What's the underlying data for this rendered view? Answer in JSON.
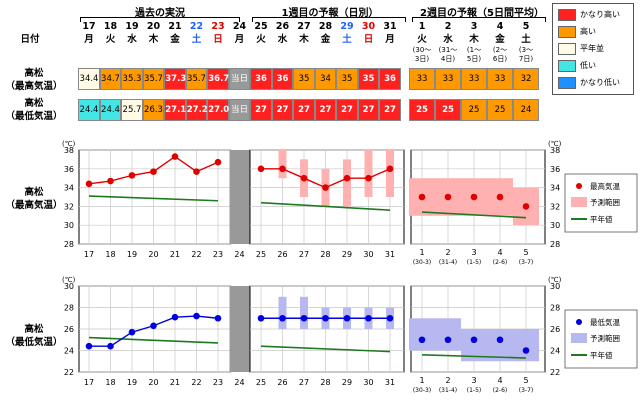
{
  "top": {
    "label_date": "日付",
    "section_past": "過去の実況",
    "section_week1": "1週目の予報（日別）",
    "section_week2": "2週目の予報（5日間平均）",
    "days": [
      {
        "num": "17",
        "dow": "月",
        "cls": ""
      },
      {
        "num": "18",
        "dow": "火",
        "cls": ""
      },
      {
        "num": "19",
        "dow": "水",
        "cls": ""
      },
      {
        "num": "20",
        "dow": "木",
        "cls": ""
      },
      {
        "num": "21",
        "dow": "金",
        "cls": ""
      },
      {
        "num": "22",
        "dow": "土",
        "cls": "sat"
      },
      {
        "num": "23",
        "dow": "日",
        "cls": "sun"
      },
      {
        "num": "24",
        "dow": "月",
        "cls": ""
      },
      {
        "num": "25",
        "dow": "火",
        "cls": ""
      },
      {
        "num": "26",
        "dow": "水",
        "cls": ""
      },
      {
        "num": "27",
        "dow": "木",
        "cls": ""
      },
      {
        "num": "28",
        "dow": "金",
        "cls": ""
      },
      {
        "num": "29",
        "dow": "土",
        "cls": "sat"
      },
      {
        "num": "30",
        "dow": "日",
        "cls": "sun"
      },
      {
        "num": "31",
        "dow": "月",
        "cls": ""
      }
    ],
    "periods": [
      {
        "num": "1",
        "dow": "火",
        "range": "(30〜",
        "range2": "3日)"
      },
      {
        "num": "2",
        "dow": "水",
        "range": "(31〜",
        "range2": "4日)"
      },
      {
        "num": "3",
        "dow": "木",
        "range": "(1〜",
        "range2": "5日)"
      },
      {
        "num": "4",
        "dow": "金",
        "range": "(2〜",
        "range2": "6日)"
      },
      {
        "num": "5",
        "dow": "土",
        "range": "(3〜",
        "range2": "7日)"
      }
    ],
    "row_max_label": [
      "高松",
      "（最高気温）"
    ],
    "row_min_label": [
      "高松",
      "（最低気温）"
    ],
    "row_max_daily": [
      {
        "v": "34.4",
        "c": "#fffbe6"
      },
      {
        "v": "34.7",
        "c": "#ff9900"
      },
      {
        "v": "35.3",
        "c": "#ff9900"
      },
      {
        "v": "35.7",
        "c": "#ff9900"
      },
      {
        "v": "37.3",
        "c": "#ff2020",
        "b": true
      },
      {
        "v": "35.7",
        "c": "#ff9900"
      },
      {
        "v": "36.7",
        "c": "#ff2020",
        "b": true
      },
      {
        "v": "当日",
        "c": "#999999",
        "today": true
      },
      {
        "v": "36",
        "c": "#ff2020",
        "b": true
      },
      {
        "v": "36",
        "c": "#ff2020",
        "b": true
      },
      {
        "v": "35",
        "c": "#ff9900"
      },
      {
        "v": "34",
        "c": "#ff9900"
      },
      {
        "v": "35",
        "c": "#ff9900"
      },
      {
        "v": "35",
        "c": "#ff2020",
        "b": true
      },
      {
        "v": "36",
        "c": "#ff2020",
        "b": true
      }
    ],
    "row_max_weekly": [
      {
        "v": "33",
        "c": "#ff9900"
      },
      {
        "v": "33",
        "c": "#ff9900"
      },
      {
        "v": "33",
        "c": "#ff9900"
      },
      {
        "v": "33",
        "c": "#ff9900"
      },
      {
        "v": "32",
        "c": "#ff9900"
      }
    ],
    "row_min_daily": [
      {
        "v": "24.4",
        "c": "#44e5e5"
      },
      {
        "v": "24.4",
        "c": "#44e5e5"
      },
      {
        "v": "25.7",
        "c": "#fffbe6"
      },
      {
        "v": "26.3",
        "c": "#ff9900"
      },
      {
        "v": "27.1",
        "c": "#ff2020",
        "b": true
      },
      {
        "v": "27.2",
        "c": "#ff2020",
        "b": true
      },
      {
        "v": "27.0",
        "c": "#ff2020",
        "b": true
      },
      {
        "v": "当日",
        "c": "#999999",
        "today": true
      },
      {
        "v": "27",
        "c": "#ff2020",
        "b": true
      },
      {
        "v": "27",
        "c": "#ff2020",
        "b": true
      },
      {
        "v": "27",
        "c": "#ff2020",
        "b": true
      },
      {
        "v": "27",
        "c": "#ff2020",
        "b": true
      },
      {
        "v": "27",
        "c": "#ff2020",
        "b": true
      },
      {
        "v": "27",
        "c": "#ff2020",
        "b": true
      },
      {
        "v": "27",
        "c": "#ff2020",
        "b": true
      }
    ],
    "row_min_weekly": [
      {
        "v": "25",
        "c": "#ff2020",
        "b": true
      },
      {
        "v": "25",
        "c": "#ff2020",
        "b": true
      },
      {
        "v": "25",
        "c": "#ff9900"
      },
      {
        "v": "25",
        "c": "#ff9900"
      },
      {
        "v": "24",
        "c": "#ff9900"
      }
    ],
    "legend": [
      {
        "label": "かなり高い",
        "color": "#ff2020"
      },
      {
        "label": "高い",
        "color": "#ff9900"
      },
      {
        "label": "平年並",
        "color": "#fffbe6"
      },
      {
        "label": "低い",
        "color": "#44e5e5"
      },
      {
        "label": "かなり低い",
        "color": "#1e90ff"
      }
    ]
  },
  "chart_data": [
    {
      "type": "line",
      "title": "",
      "side_label": [
        "高松",
        "（最高気温）"
      ],
      "unit_label": "(℃)",
      "ylim": [
        28,
        38
      ],
      "yticks": [
        28,
        30,
        32,
        34,
        36,
        38
      ],
      "x_daily": [
        "17",
        "18",
        "19",
        "20",
        "21",
        "22",
        "23",
        "24",
        "25",
        "26",
        "27",
        "28",
        "29",
        "30",
        "31"
      ],
      "x_weekly": [
        "1",
        "2",
        "3",
        "4",
        "5"
      ],
      "x_weekly_sub": [
        "(30-3)",
        "(31-4)",
        "(1-5)",
        "(2-6)",
        "(3-7)"
      ],
      "today_index": 7,
      "observed": {
        "x": [
          0,
          1,
          2,
          3,
          4,
          5,
          6
        ],
        "y": [
          34.4,
          34.7,
          35.3,
          35.7,
          37.3,
          35.7,
          36.7
        ]
      },
      "forecast": {
        "x": [
          8,
          9,
          10,
          11,
          12,
          13,
          14
        ],
        "y": [
          36,
          36,
          35,
          34,
          35,
          35,
          36
        ],
        "low": [
          36,
          35,
          33,
          32,
          32,
          33,
          33
        ],
        "high": [
          36,
          38,
          37,
          36,
          37,
          38,
          38
        ]
      },
      "normal_past": {
        "x": [
          0,
          6
        ],
        "y": [
          33.1,
          32.6
        ]
      },
      "normal_fc": {
        "x": [
          8,
          14
        ],
        "y": [
          32.4,
          31.6
        ]
      },
      "weekly": {
        "y": [
          33,
          33,
          33,
          33,
          32
        ],
        "low": [
          31,
          31,
          31,
          31,
          30
        ],
        "high": [
          35,
          35,
          35,
          35,
          34
        ],
        "normal": [
          31.4,
          30.8
        ]
      },
      "line_color": "#e00000",
      "range_color": "#ffb0b0",
      "normal_color": "#1f7a1f",
      "legend": [
        "最高気温",
        "予測範囲",
        "平年値"
      ]
    },
    {
      "type": "line",
      "title": "",
      "side_label": [
        "高松",
        "（最低気温）"
      ],
      "unit_label": "(℃)",
      "ylim": [
        22,
        30
      ],
      "yticks": [
        22,
        24,
        26,
        28,
        30
      ],
      "x_daily": [
        "17",
        "18",
        "19",
        "20",
        "21",
        "22",
        "23",
        "24",
        "25",
        "26",
        "27",
        "28",
        "29",
        "30",
        "31"
      ],
      "x_weekly": [
        "1",
        "2",
        "3",
        "4",
        "5"
      ],
      "x_weekly_sub": [
        "(30-3)",
        "(31-4)",
        "(1-5)",
        "(2-6)",
        "(3-7)"
      ],
      "today_index": 7,
      "observed": {
        "x": [
          0,
          1,
          2,
          3,
          4,
          5,
          6
        ],
        "y": [
          24.4,
          24.4,
          25.7,
          26.3,
          27.1,
          27.2,
          27.0
        ]
      },
      "forecast": {
        "x": [
          8,
          9,
          10,
          11,
          12,
          13,
          14
        ],
        "y": [
          27,
          27,
          27,
          27,
          27,
          27,
          27
        ],
        "low": [
          27,
          26,
          26,
          26,
          26,
          26,
          26
        ],
        "high": [
          27,
          29,
          29,
          28,
          28,
          28,
          28
        ]
      },
      "normal_past": {
        "x": [
          0,
          6
        ],
        "y": [
          25.2,
          24.7
        ]
      },
      "normal_fc": {
        "x": [
          8,
          14
        ],
        "y": [
          24.4,
          23.9
        ]
      },
      "weekly": {
        "y": [
          25,
          25,
          25,
          25,
          24
        ],
        "low": [
          24,
          24,
          23,
          23,
          23
        ],
        "high": [
          27,
          27,
          26,
          26,
          26
        ],
        "normal": [
          23.6,
          23.3
        ]
      },
      "line_color": "#0000e0",
      "range_color": "#b8b8f0",
      "normal_color": "#1f7a1f",
      "legend": [
        "最低気温",
        "予測範囲",
        "平年値"
      ]
    }
  ]
}
